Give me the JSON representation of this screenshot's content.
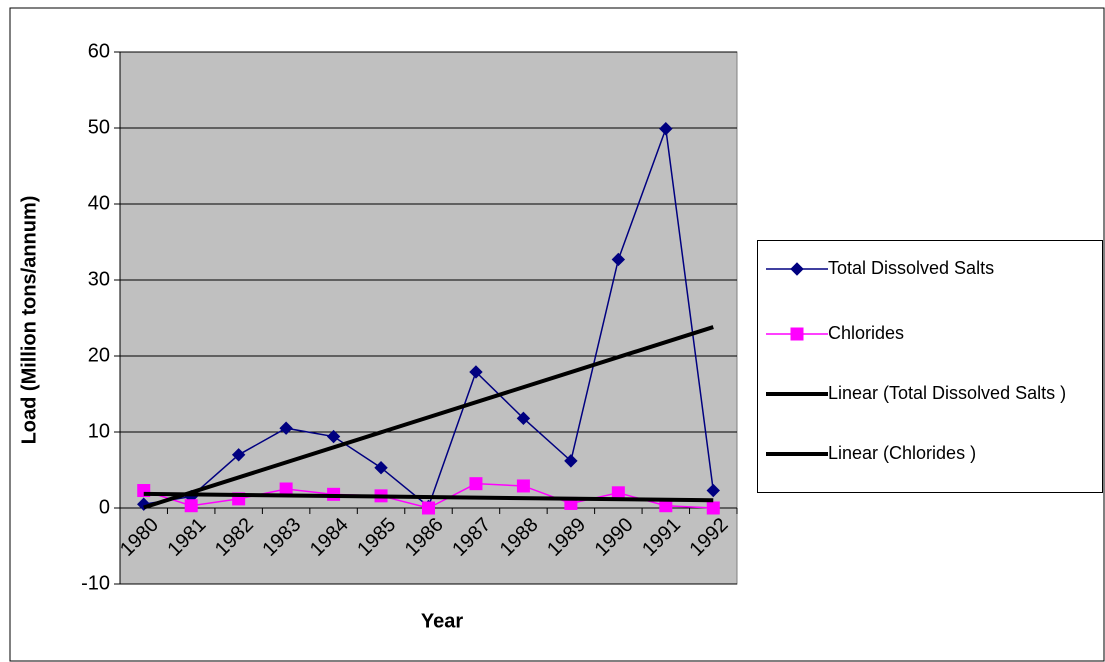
{
  "chart_data": {
    "type": "line",
    "x_label": "Year",
    "y_label": "Load (Million tons/annum)",
    "categories": [
      "1980",
      "1981",
      "1982",
      "1983",
      "1984",
      "1985",
      "1986",
      "1987",
      "1988",
      "1989",
      "1990",
      "1991",
      "1992"
    ],
    "series": [
      {
        "name": "Total Dissolved Salts",
        "color": "#000080",
        "marker": "diamond",
        "values": [
          0.5,
          1.5,
          7,
          10.5,
          9.4,
          5.3,
          0.2,
          17.9,
          11.8,
          6.2,
          32.7,
          49.9,
          2.3
        ],
        "trendline": {
          "name": "Linear (Total Dissolved Salts )",
          "type": "linear",
          "color": "#000000"
        }
      },
      {
        "name": "Chlorides",
        "color": "#FF00FF",
        "marker": "square",
        "values": [
          2.3,
          0.3,
          1.2,
          2.5,
          1.8,
          1.6,
          0,
          3.2,
          2.9,
          0.6,
          2.0,
          0.3,
          0
        ],
        "trendline": {
          "name": "Linear (Chlorides )",
          "type": "linear",
          "color": "#000000"
        }
      }
    ],
    "ylim": [
      -10,
      60
    ],
    "yticks": [
      -10,
      0,
      10,
      20,
      30,
      40,
      50,
      60
    ],
    "grid": true,
    "plot_background": "#C0C0C0",
    "legend": "right"
  }
}
